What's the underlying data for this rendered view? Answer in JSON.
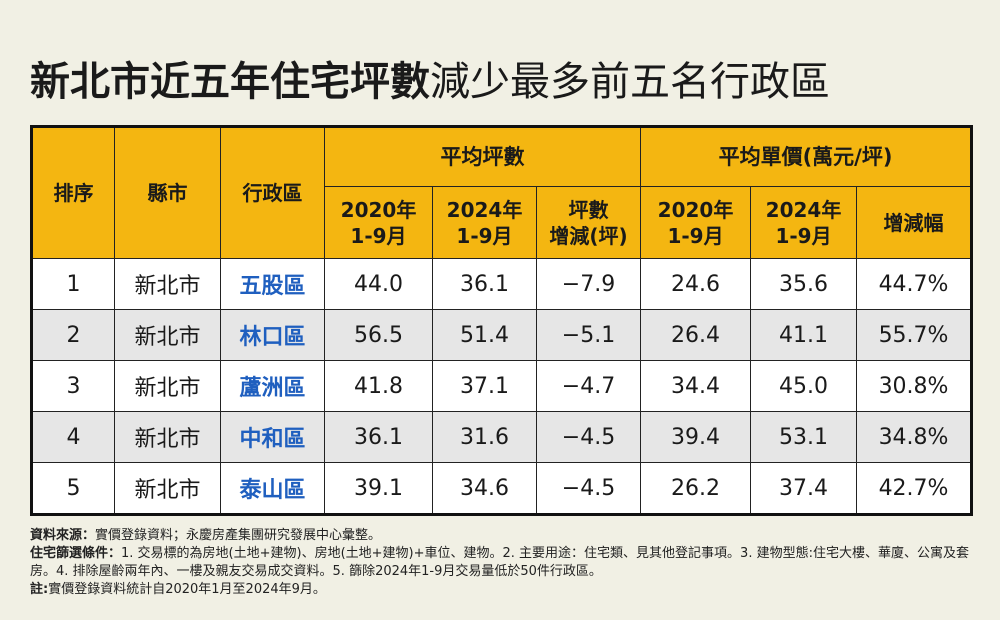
{
  "title": {
    "bold_part": "新北市近五年住宅坪數",
    "light_part": "減少最多前五名行政區"
  },
  "table": {
    "headers": {
      "rank": "排序",
      "city": "縣市",
      "district": "行政區",
      "avg_ping": "平均坪數",
      "avg_price": "平均單價(萬元/坪)",
      "ping_2020": "2020年\n1-9月",
      "ping_2024": "2024年\n1-9月",
      "ping_change": "坪數\n增減(坪)",
      "price_2020": "2020年\n1-9月",
      "price_2024": "2024年\n1-9月",
      "price_change": "增減幅"
    },
    "rows": [
      {
        "rank": "1",
        "city": "新北市",
        "district": "五股區",
        "ping_2020": "44.0",
        "ping_2024": "36.1",
        "ping_change": "−7.9",
        "price_2020": "24.6",
        "price_2024": "35.6",
        "price_change": "44.7%"
      },
      {
        "rank": "2",
        "city": "新北市",
        "district": "林口區",
        "ping_2020": "56.5",
        "ping_2024": "51.4",
        "ping_change": "−5.1",
        "price_2020": "26.4",
        "price_2024": "41.1",
        "price_change": "55.7%"
      },
      {
        "rank": "3",
        "city": "新北市",
        "district": "蘆洲區",
        "ping_2020": "41.8",
        "ping_2024": "37.1",
        "ping_change": "−4.7",
        "price_2020": "34.4",
        "price_2024": "45.0",
        "price_change": "30.8%"
      },
      {
        "rank": "4",
        "city": "新北市",
        "district": "中和區",
        "ping_2020": "36.1",
        "ping_2024": "31.6",
        "ping_change": "−4.5",
        "price_2020": "39.4",
        "price_2024": "53.1",
        "price_change": "34.8%"
      },
      {
        "rank": "5",
        "city": "新北市",
        "district": "泰山區",
        "ping_2020": "39.1",
        "ping_2024": "34.6",
        "ping_change": "−4.5",
        "price_2020": "26.2",
        "price_2024": "37.4",
        "price_change": "42.7%"
      }
    ]
  },
  "notes": {
    "source_label": "資料來源：",
    "source_text": "實價登錄資料；永慶房產集團研究發展中心彙整。",
    "criteria_label": "住宅篩選條件：",
    "criteria_text": "1. 交易標的為房地(土地+建物)、房地(土地+建物)+車位、建物。2. 主要用途：住宅類、見其他登記事項。3. 建物型態:住宅大樓、華廈、公寓及套房。4. 排除屋齡兩年內、一樓及親友交易成交資料。5. 篩除2024年1-9月交易量低於50件行政區。",
    "note_label": "註:",
    "note_text": "實價登錄資料統計自2020年1月至2024年9月。"
  },
  "colors": {
    "header_bg": "#f4b611",
    "district_text": "#1f5fbf",
    "page_bg": "#f1f0e4",
    "row_alt_bg": "#e6e6e6"
  }
}
